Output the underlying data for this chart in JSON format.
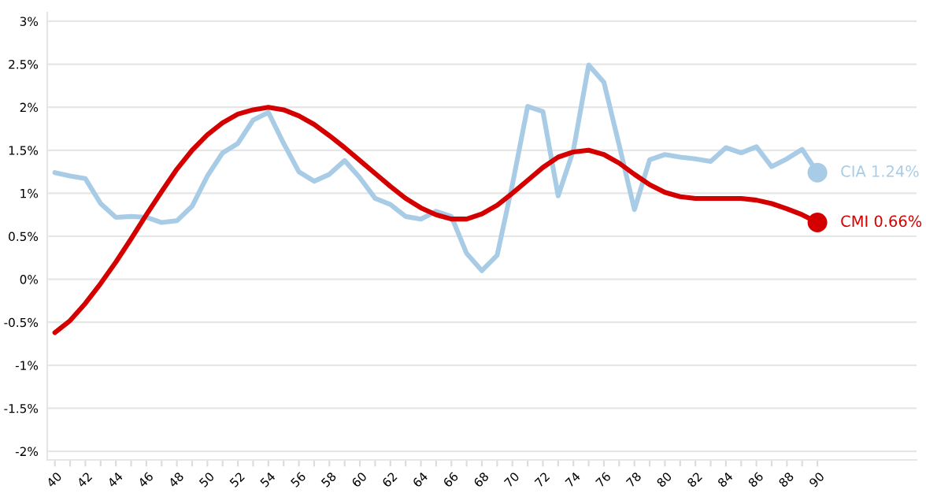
{
  "chart_data": {
    "type": "line",
    "categories": [
      "40",
      null,
      "42",
      null,
      "44",
      null,
      "46",
      null,
      "48",
      null,
      "50",
      null,
      "52",
      null,
      "54",
      null,
      "56",
      null,
      "58",
      null,
      "60",
      null,
      "62",
      null,
      "64",
      null,
      "66",
      null,
      "68",
      null,
      "70",
      null,
      "72",
      null,
      "74",
      null,
      "76",
      null,
      "78",
      null,
      "80",
      null,
      "82",
      null,
      "84",
      null,
      "86",
      null,
      "88",
      null,
      "90"
    ],
    "series": [
      {
        "name": "CIA",
        "color": "#a8cce6",
        "values": [
          1.24,
          1.2,
          1.17,
          0.88,
          0.72,
          0.73,
          0.72,
          0.66,
          0.68,
          0.85,
          1.2,
          1.47,
          1.58,
          1.85,
          1.94,
          1.58,
          1.25,
          1.14,
          1.22,
          1.38,
          1.18,
          0.94,
          0.87,
          0.73,
          0.7,
          0.79,
          0.73,
          0.3,
          0.1,
          0.28,
          1.1,
          2.01,
          1.95,
          0.97,
          1.5,
          2.49,
          2.29,
          1.56,
          0.81,
          1.39,
          1.45,
          1.42,
          1.4,
          1.37,
          1.53,
          1.47,
          1.54,
          1.31,
          1.4,
          1.51,
          1.24
        ],
        "value_labels": [
          null,
          null,
          null,
          null,
          null,
          null,
          null,
          null,
          null,
          null,
          null,
          null,
          null,
          null,
          null,
          null,
          null,
          null,
          null,
          null,
          null,
          null,
          null,
          null,
          null,
          null,
          null,
          null,
          null,
          null,
          null,
          null,
          null,
          null,
          null,
          null,
          null,
          null,
          null,
          null,
          null,
          null,
          null,
          null,
          null,
          null,
          null,
          null,
          null,
          null,
          "1.24%"
        ]
      },
      {
        "name": "CMI",
        "color": "#d40000",
        "values": [
          -0.62,
          -0.48,
          -0.28,
          -0.05,
          0.2,
          0.47,
          0.75,
          1.02,
          1.28,
          1.5,
          1.68,
          1.82,
          1.92,
          1.97,
          2.0,
          1.97,
          1.9,
          1.8,
          1.67,
          1.53,
          1.38,
          1.23,
          1.08,
          0.94,
          0.83,
          0.75,
          0.7,
          0.7,
          0.76,
          0.86,
          1.0,
          1.15,
          1.3,
          1.42,
          1.48,
          1.5,
          1.45,
          1.35,
          1.22,
          1.1,
          1.01,
          0.96,
          0.94,
          0.94,
          0.94,
          0.94,
          0.92,
          0.88,
          0.82,
          0.75,
          0.66
        ],
        "value_labels": [
          null,
          null,
          null,
          null,
          null,
          null,
          null,
          null,
          null,
          null,
          null,
          null,
          null,
          null,
          null,
          null,
          null,
          null,
          null,
          null,
          null,
          null,
          null,
          null,
          null,
          null,
          null,
          null,
          null,
          null,
          null,
          null,
          null,
          null,
          null,
          null,
          null,
          null,
          null,
          null,
          null,
          null,
          null,
          null,
          null,
          null,
          null,
          null,
          null,
          null,
          "0.66%"
        ]
      }
    ],
    "ylim": [
      -2.1,
      3.1
    ],
    "yticks": [
      {
        "value": -2,
        "label": "-2%"
      },
      {
        "value": -1.5,
        "label": "-1.5%"
      },
      {
        "value": -1,
        "label": "-1%"
      },
      {
        "value": -0.5,
        "label": "-0.5%"
      },
      {
        "value": 0,
        "label": "0%"
      },
      {
        "value": 0.5,
        "label": "0.5%"
      },
      {
        "value": 1,
        "label": "1%"
      },
      {
        "value": 1.5,
        "label": "1.5%"
      },
      {
        "value": 2,
        "label": "2%"
      },
      {
        "value": 2.5,
        "label": "2.5%"
      },
      {
        "value": 3,
        "label": "3%"
      }
    ],
    "grid": "y",
    "legend": false
  }
}
